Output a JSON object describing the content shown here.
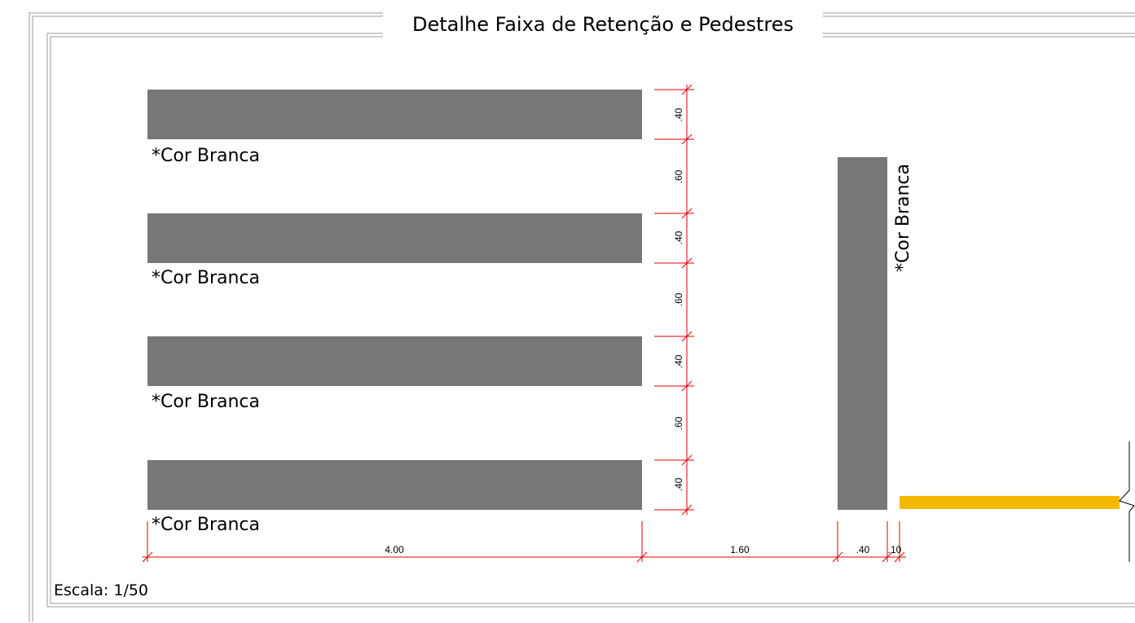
{
  "title": "Detalhe Faixa de Retenção e Pedestres",
  "scale_label": "Escala: 1/50",
  "note": "*Cor Branca",
  "stripe_labels": [
    "*Cor Branca",
    "*Cor Branca",
    "*Cor Branca",
    "*Cor Branca"
  ],
  "retention_label": "*Cor Branca",
  "dims": {
    "stripe_length": "4.00",
    "gap_horizontal": "1.60",
    "retention_width": ".40",
    "offset": ".10",
    "vertical": [
      ".40",
      ".60",
      ".40",
      ".60",
      ".40",
      ".60",
      ".40"
    ]
  },
  "colors": {
    "stripe": "#777777",
    "dimension": "#e00000",
    "curb": "#f5b800",
    "frame": "#9a9a9a"
  }
}
